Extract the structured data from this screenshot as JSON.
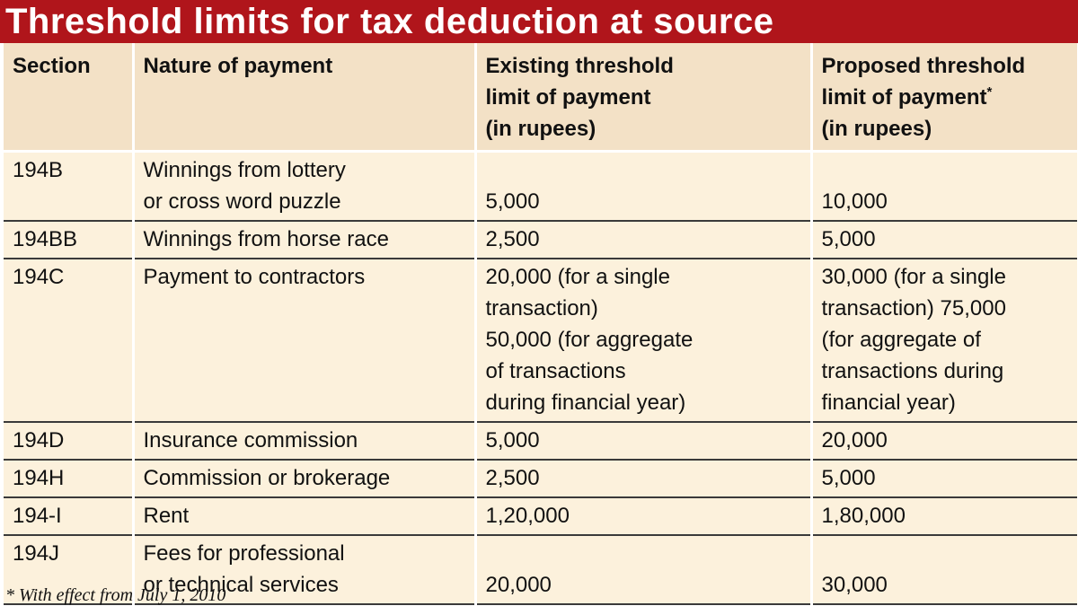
{
  "title": "Threshold limits for tax deduction at source",
  "headers": {
    "section": "Section",
    "nature": "Nature of payment",
    "existing": "Existing threshold\nlimit of payment\n(in rupees)",
    "proposed": "Proposed threshold\nlimit of payment",
    "proposed_marker": "*",
    "proposed_unit": "(in rupees)"
  },
  "rows": [
    {
      "section": "194B",
      "nature": "Winnings from lottery\nor cross word puzzle",
      "existing": "5,000",
      "proposed": "10,000"
    },
    {
      "section": "194BB",
      "nature": "Winnings from horse race",
      "existing": "2,500",
      "proposed": "5,000"
    },
    {
      "section": "194C",
      "nature": "Payment to contractors",
      "existing": "20,000 (for a single\ntransaction)\n50,000 (for aggregate\nof transactions\nduring financial year)",
      "proposed": "30,000 (for a single\ntransaction) 75,000\n(for aggregate of\ntransactions  during\nfinancial year)"
    },
    {
      "section": "194D",
      "nature": "Insurance commission",
      "existing": "5,000",
      "proposed": "20,000"
    },
    {
      "section": "194H",
      "nature": "Commission or brokerage",
      "existing": "2,500",
      "proposed": "5,000"
    },
    {
      "section": "194-I",
      "nature": "Rent",
      "existing": "1,20,000",
      "proposed": "1,80,000"
    },
    {
      "section": "194J",
      "nature": "Fees for professional\nor technical  services",
      "existing": "20,000",
      "proposed": "30,000"
    }
  ],
  "footnote": "* With effect from July 1, 2010",
  "colors": {
    "title_bg": "#b0151b",
    "header_bg": "#f3e1c6",
    "row_bg": "#fcf1dc"
  }
}
